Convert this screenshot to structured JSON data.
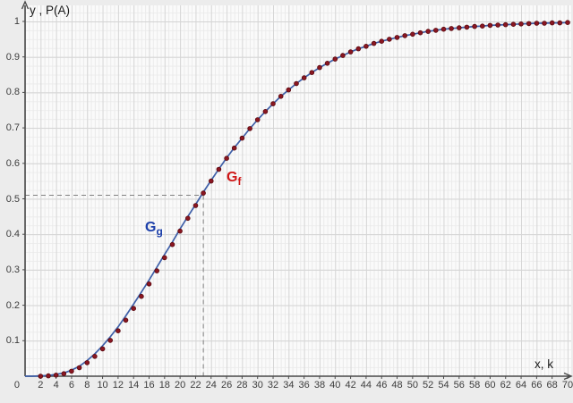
{
  "colors": {
    "background": "#ececec",
    "plot_background": "#fafafa",
    "axis": "#4a4a4a",
    "grid_major": "#d3d3d3",
    "grid_minor": "#ededed",
    "guide_dashed": "#808080",
    "curve": "#3e5fa8",
    "dot_fill": "#8a1621",
    "dot_stroke": "#58090f",
    "label_g_color": "#1c3faa",
    "label_f_color": "#cf1717"
  },
  "chart_data": {
    "type": "line+scatter",
    "title": "",
    "x_axis": {
      "label": "x, k",
      "min": 0,
      "max": 70,
      "tick_step": 2,
      "ticks": [
        2,
        4,
        6,
        8,
        10,
        12,
        14,
        16,
        18,
        20,
        22,
        24,
        26,
        28,
        30,
        32,
        34,
        36,
        38,
        40,
        42,
        44,
        46,
        48,
        50,
        52,
        54,
        56,
        58,
        60,
        62,
        64,
        66,
        68,
        70
      ]
    },
    "y_axis": {
      "label": "y , P(A)",
      "min": 0,
      "max": 1,
      "tick_step": 0.1,
      "ticks": [
        "1",
        "0.9",
        "0.8",
        "0.7",
        "0.6",
        "0.5",
        "0.4",
        "0.3",
        "0.2",
        "0.1"
      ]
    },
    "origin_label": "0",
    "grid": "on",
    "guide_lines": {
      "x": 23,
      "y": 0.51,
      "style": "dashed"
    },
    "series": [
      {
        "name": "G_g",
        "label_main": "G",
        "label_sub": "g",
        "type": "line",
        "color": "#3e5fa8",
        "label_color": "#1c3faa",
        "points": [
          [
            0,
            0
          ],
          [
            1,
            0
          ],
          [
            2,
            0.001
          ],
          [
            3,
            0.002
          ],
          [
            4,
            0.005
          ],
          [
            5,
            0.009
          ],
          [
            6,
            0.017
          ],
          [
            7,
            0.028
          ],
          [
            8,
            0.044
          ],
          [
            9,
            0.063
          ],
          [
            10,
            0.086
          ],
          [
            11,
            0.111
          ],
          [
            12,
            0.139
          ],
          [
            13,
            0.17
          ],
          [
            14,
            0.203
          ],
          [
            15,
            0.237
          ],
          [
            16,
            0.271
          ],
          [
            17,
            0.307
          ],
          [
            18,
            0.343
          ],
          [
            19,
            0.378
          ],
          [
            20,
            0.415
          ],
          [
            21,
            0.45
          ],
          [
            22,
            0.484
          ],
          [
            23,
            0.519
          ],
          [
            24,
            0.552
          ],
          [
            25,
            0.584
          ],
          [
            26,
            0.615
          ],
          [
            27,
            0.644
          ],
          [
            28,
            0.671
          ],
          [
            29,
            0.698
          ],
          [
            30,
            0.723
          ],
          [
            31,
            0.746
          ],
          [
            32,
            0.768
          ],
          [
            33,
            0.789
          ],
          [
            34,
            0.807
          ],
          [
            35,
            0.825
          ],
          [
            36,
            0.841
          ],
          [
            37,
            0.856
          ],
          [
            38,
            0.87
          ],
          [
            39,
            0.882
          ],
          [
            40,
            0.894
          ],
          [
            41,
            0.904
          ],
          [
            42,
            0.914
          ],
          [
            43,
            0.923
          ],
          [
            44,
            0.93
          ],
          [
            45,
            0.938
          ],
          [
            46,
            0.944
          ],
          [
            47,
            0.95
          ],
          [
            48,
            0.955
          ],
          [
            49,
            0.96
          ],
          [
            50,
            0.964
          ],
          [
            51,
            0.968
          ],
          [
            52,
            0.972
          ],
          [
            53,
            0.975
          ],
          [
            54,
            0.978
          ],
          [
            55,
            0.98
          ],
          [
            56,
            0.982
          ],
          [
            57,
            0.984
          ],
          [
            58,
            0.986
          ],
          [
            59,
            0.987
          ],
          [
            60,
            0.989
          ],
          [
            61,
            0.99
          ],
          [
            62,
            0.991
          ],
          [
            63,
            0.992
          ],
          [
            64,
            0.993
          ],
          [
            65,
            0.994
          ],
          [
            66,
            0.995
          ],
          [
            67,
            0.995
          ],
          [
            68,
            0.996
          ],
          [
            69,
            0.996
          ],
          [
            70,
            0.997
          ]
        ]
      },
      {
        "name": "G_f",
        "label_main": "G",
        "label_sub": "f",
        "type": "scatter",
        "color": "#8a1621",
        "label_color": "#cf1717",
        "points": [
          [
            2,
            0
          ],
          [
            3,
            0.001
          ],
          [
            4,
            0.003
          ],
          [
            5,
            0.007
          ],
          [
            6,
            0.014
          ],
          [
            7,
            0.024
          ],
          [
            8,
            0.038
          ],
          [
            9,
            0.056
          ],
          [
            10,
            0.077
          ],
          [
            11,
            0.101
          ],
          [
            12,
            0.128
          ],
          [
            13,
            0.158
          ],
          [
            14,
            0.191
          ],
          [
            15,
            0.225
          ],
          [
            16,
            0.26
          ],
          [
            17,
            0.297
          ],
          [
            18,
            0.334
          ],
          [
            19,
            0.371
          ],
          [
            20,
            0.409
          ],
          [
            21,
            0.445
          ],
          [
            22,
            0.481
          ],
          [
            23,
            0.516
          ],
          [
            24,
            0.55
          ],
          [
            25,
            0.583
          ],
          [
            26,
            0.614
          ],
          [
            27,
            0.643
          ],
          [
            28,
            0.671
          ],
          [
            29,
            0.698
          ],
          [
            30,
            0.723
          ],
          [
            31,
            0.746
          ],
          [
            32,
            0.768
          ],
          [
            33,
            0.789
          ],
          [
            34,
            0.807
          ],
          [
            35,
            0.825
          ],
          [
            36,
            0.841
          ],
          [
            37,
            0.856
          ],
          [
            38,
            0.87
          ],
          [
            39,
            0.882
          ],
          [
            40,
            0.894
          ],
          [
            41,
            0.904
          ],
          [
            42,
            0.914
          ],
          [
            43,
            0.923
          ],
          [
            44,
            0.93
          ],
          [
            45,
            0.938
          ],
          [
            46,
            0.944
          ],
          [
            47,
            0.95
          ],
          [
            48,
            0.955
          ],
          [
            49,
            0.96
          ],
          [
            50,
            0.964
          ],
          [
            51,
            0.968
          ],
          [
            52,
            0.972
          ],
          [
            53,
            0.975
          ],
          [
            54,
            0.978
          ],
          [
            55,
            0.98
          ],
          [
            56,
            0.982
          ],
          [
            57,
            0.984
          ],
          [
            58,
            0.986
          ],
          [
            59,
            0.987
          ],
          [
            60,
            0.989
          ],
          [
            61,
            0.99
          ],
          [
            62,
            0.991
          ],
          [
            63,
            0.992
          ],
          [
            64,
            0.993
          ],
          [
            65,
            0.994
          ],
          [
            66,
            0.995
          ],
          [
            67,
            0.995
          ],
          [
            68,
            0.996
          ],
          [
            69,
            0.996
          ],
          [
            70,
            0.997
          ]
        ]
      }
    ]
  }
}
